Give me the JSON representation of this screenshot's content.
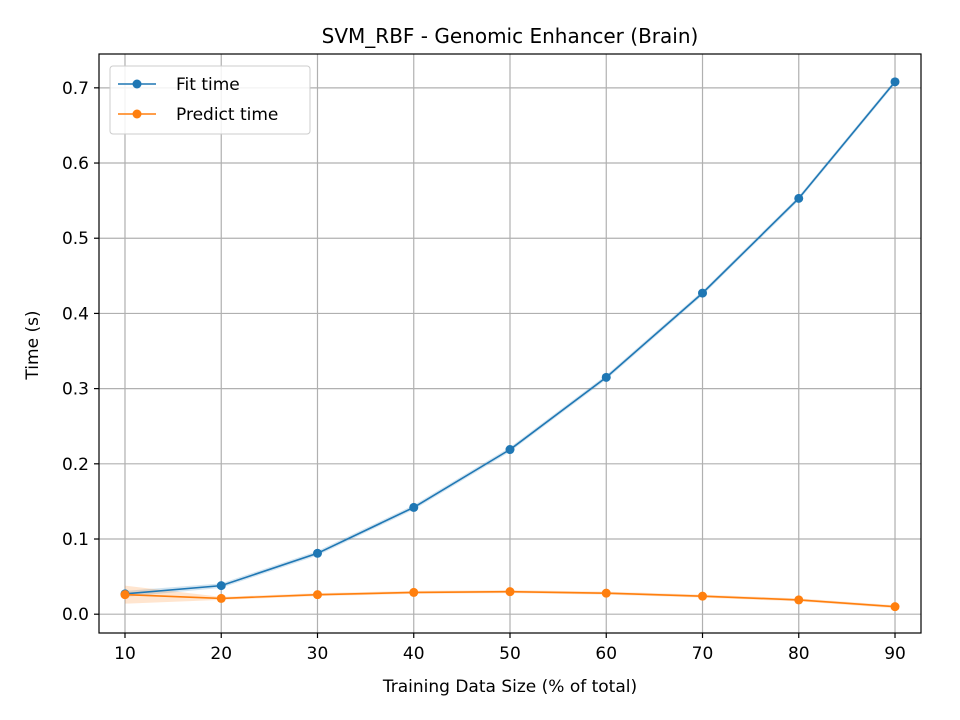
{
  "chart_data": {
    "type": "line",
    "title": "SVM_RBF - Genomic Enhancer (Brain)",
    "xlabel": "Training Data Size (% of total)",
    "ylabel": "Time (s)",
    "x": [
      10,
      20,
      30,
      40,
      50,
      60,
      70,
      80,
      90
    ],
    "xlim": [
      7.3,
      92.7
    ],
    "ylim": [
      -0.025,
      0.745
    ],
    "xticks": [
      "10",
      "20",
      "30",
      "40",
      "50",
      "60",
      "70",
      "80",
      "90"
    ],
    "yticks": [
      "0.0",
      "0.1",
      "0.2",
      "0.3",
      "0.4",
      "0.5",
      "0.6",
      "0.7"
    ],
    "ytick_values": [
      0.0,
      0.1,
      0.2,
      0.3,
      0.4,
      0.5,
      0.6,
      0.7
    ],
    "grid": true,
    "legend_position": "top-left",
    "series": [
      {
        "name": "Fit time",
        "color": "#1f77b4",
        "values": [
          0.027,
          0.038,
          0.081,
          0.142,
          0.219,
          0.315,
          0.427,
          0.553,
          0.708
        ],
        "band": [
          0.004,
          0.003,
          0.003,
          0.003,
          0.003,
          0.003,
          0.003,
          0.003,
          0.003
        ]
      },
      {
        "name": "Predict time",
        "color": "#ff7f0e",
        "values": [
          0.026,
          0.021,
          0.026,
          0.029,
          0.03,
          0.028,
          0.024,
          0.019,
          0.01
        ],
        "band": [
          0.012,
          0.002,
          0.002,
          0.002,
          0.002,
          0.002,
          0.002,
          0.002,
          0.002
        ]
      }
    ]
  }
}
